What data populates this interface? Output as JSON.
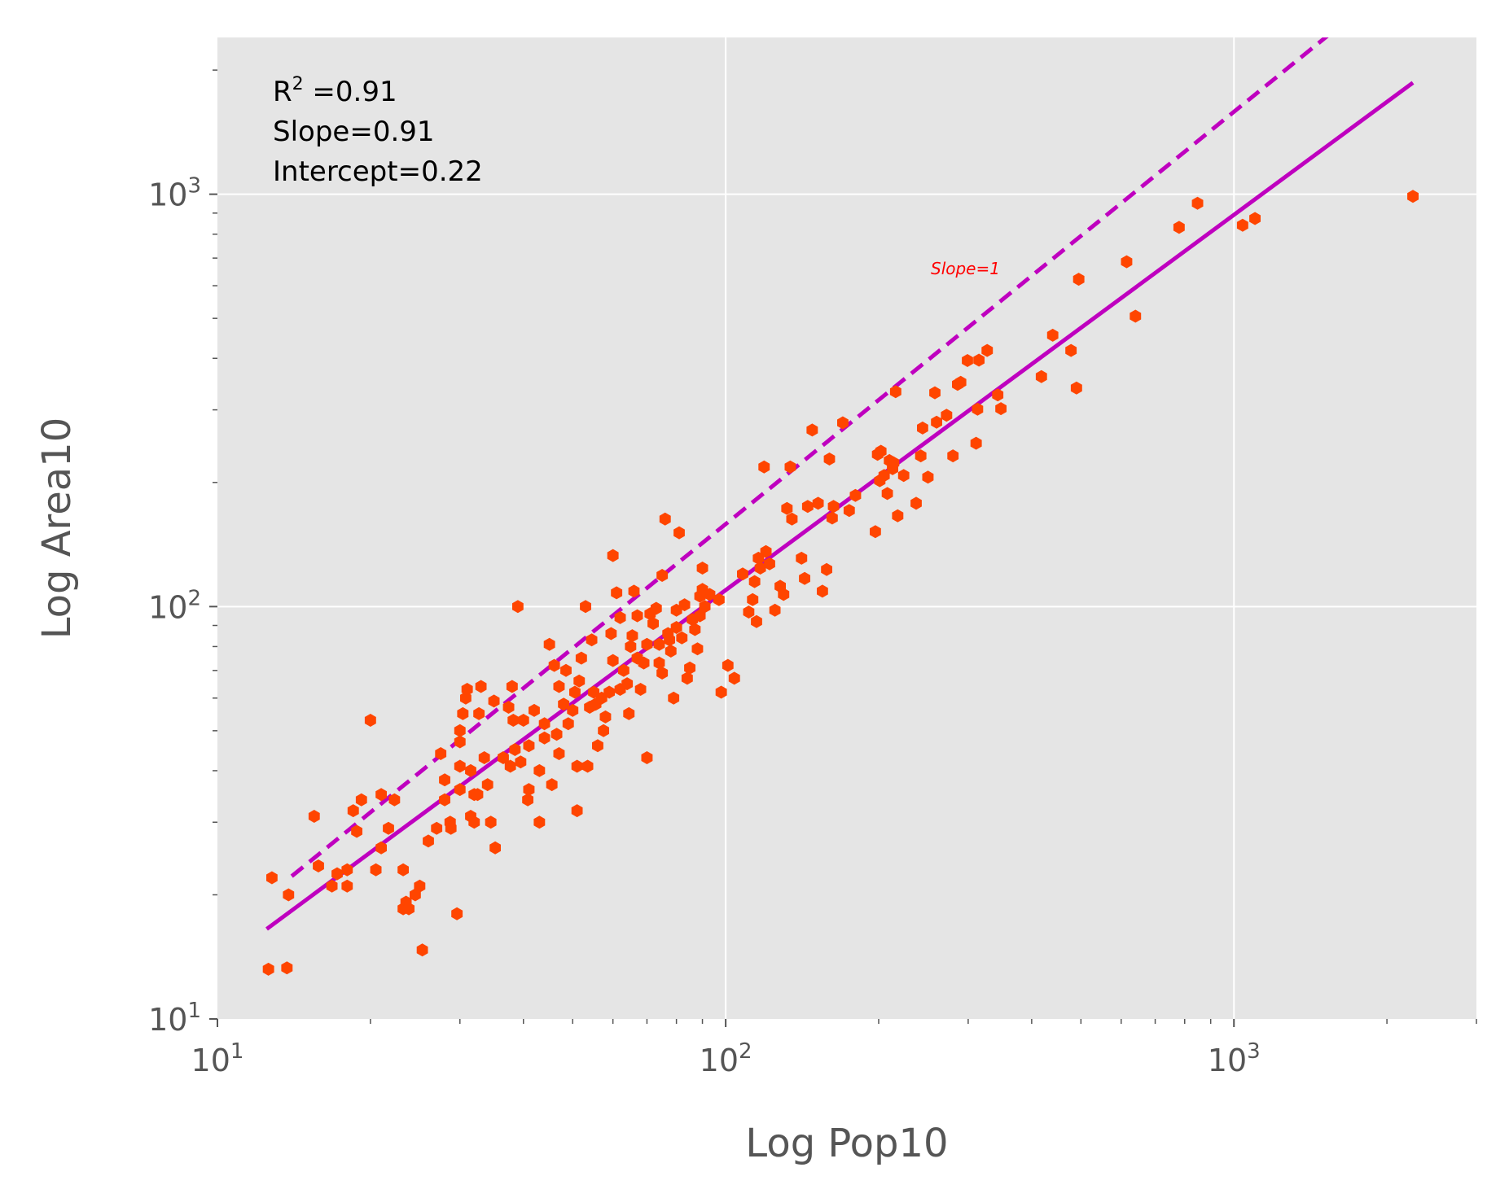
{
  "chart_data": {
    "type": "scatter",
    "title": "",
    "xlabel": "Log Pop10",
    "ylabel": "Log Area10",
    "xscale": "log",
    "yscale": "log",
    "xlim": [
      10,
      3000
    ],
    "ylim": [
      10,
      2400
    ],
    "grid": true,
    "legend": "none",
    "x_ticks": [
      {
        "value": 10,
        "base": "10",
        "exp": "1"
      },
      {
        "value": 100,
        "base": "10",
        "exp": "2"
      },
      {
        "value": 1000,
        "base": "10",
        "exp": "3"
      }
    ],
    "y_ticks": [
      {
        "value": 10,
        "base": "10",
        "exp": "1"
      },
      {
        "value": 100,
        "base": "10",
        "exp": "2"
      },
      {
        "value": 1000,
        "base": "10",
        "exp": "3"
      }
    ],
    "annotation": {
      "r2_prefix": "R",
      "r2_sup": "2",
      "r2_suffix": " =0.91",
      "slope_text": "Slope=0.91",
      "intercept_text": "Intercept=0.22"
    },
    "fit_line": {
      "style": "solid",
      "slope": 0.91,
      "intercept": 0.22,
      "x_range": [
        12.5,
        2250
      ]
    },
    "reference_line": {
      "style": "dashed",
      "slope": 1,
      "intercept": 0.2,
      "x_range": [
        14,
        2300
      ],
      "label": "Slope=1"
    },
    "colors": {
      "points": "#ff4500",
      "lines": "#bf00bf",
      "slope_label": "#ff0000",
      "plot_background": "#e5e5e5",
      "grid": "#ffffff",
      "text": "#555555"
    },
    "points": [
      [
        12.6,
        13.2
      ],
      [
        13.7,
        13.3
      ],
      [
        12.8,
        22
      ],
      [
        13.8,
        20
      ],
      [
        15.5,
        31
      ],
      [
        15.8,
        23.5
      ],
      [
        16.8,
        21
      ],
      [
        17.2,
        22.5
      ],
      [
        18,
        21
      ],
      [
        18,
        23
      ],
      [
        18.5,
        32
      ],
      [
        18.8,
        28.5
      ],
      [
        19.2,
        34
      ],
      [
        20,
        53
      ],
      [
        20.5,
        23
      ],
      [
        21,
        26
      ],
      [
        21,
        35
      ],
      [
        21.7,
        29
      ],
      [
        22.3,
        34
      ],
      [
        23.2,
        23
      ],
      [
        23.2,
        18.5
      ],
      [
        23.5,
        19.2
      ],
      [
        23.8,
        18.5
      ],
      [
        24.5,
        20
      ],
      [
        25,
        21
      ],
      [
        25.3,
        14.7
      ],
      [
        26,
        27
      ],
      [
        27,
        29
      ],
      [
        27.5,
        44
      ],
      [
        28,
        38
      ],
      [
        28,
        34
      ],
      [
        28.7,
        30
      ],
      [
        28.8,
        29
      ],
      [
        29.6,
        18
      ],
      [
        30,
        36
      ],
      [
        30,
        41
      ],
      [
        30,
        47
      ],
      [
        30,
        50
      ],
      [
        30.4,
        55
      ],
      [
        30.8,
        60
      ],
      [
        31,
        63
      ],
      [
        31.5,
        40
      ],
      [
        31.5,
        31
      ],
      [
        32,
        35
      ],
      [
        32,
        30
      ],
      [
        32.5,
        35
      ],
      [
        32.7,
        55
      ],
      [
        33,
        64
      ],
      [
        33.5,
        43
      ],
      [
        34,
        37
      ],
      [
        34.5,
        30
      ],
      [
        35,
        59
      ],
      [
        35.2,
        26
      ],
      [
        36.5,
        43
      ],
      [
        37.4,
        57
      ],
      [
        37.7,
        41
      ],
      [
        38,
        64
      ],
      [
        38.2,
        53
      ],
      [
        38.5,
        45
      ],
      [
        39,
        100
      ],
      [
        39.5,
        42
      ],
      [
        40,
        53
      ],
      [
        40.8,
        34
      ],
      [
        41,
        36
      ],
      [
        41,
        46
      ],
      [
        42,
        56
      ],
      [
        43,
        40
      ],
      [
        43,
        30
      ],
      [
        44,
        48
      ],
      [
        44,
        52
      ],
      [
        45,
        81
      ],
      [
        45.5,
        37
      ],
      [
        46,
        72
      ],
      [
        46.5,
        49
      ],
      [
        47,
        64
      ],
      [
        47,
        44
      ],
      [
        48,
        58
      ],
      [
        48.5,
        70
      ],
      [
        49,
        52
      ],
      [
        50,
        56
      ],
      [
        50.5,
        62
      ],
      [
        51,
        41
      ],
      [
        51,
        32
      ],
      [
        51.5,
        66
      ],
      [
        52,
        75
      ],
      [
        53,
        100
      ],
      [
        53.5,
        41
      ],
      [
        54,
        57
      ],
      [
        54.5,
        83
      ],
      [
        55,
        62
      ],
      [
        55.5,
        58
      ],
      [
        56,
        46
      ],
      [
        57,
        60
      ],
      [
        57.5,
        50
      ],
      [
        58,
        54
      ],
      [
        59,
        62
      ],
      [
        59.5,
        86
      ],
      [
        60,
        74
      ],
      [
        60,
        133
      ],
      [
        61,
        108
      ],
      [
        62,
        94
      ],
      [
        62,
        63
      ],
      [
        63,
        70
      ],
      [
        64,
        65
      ],
      [
        64.5,
        55
      ],
      [
        65,
        80
      ],
      [
        65.5,
        85
      ],
      [
        66,
        109
      ],
      [
        67,
        95
      ],
      [
        67,
        75
      ],
      [
        68,
        63
      ],
      [
        69,
        73
      ],
      [
        70,
        81
      ],
      [
        70,
        43
      ],
      [
        71,
        96
      ],
      [
        72,
        91
      ],
      [
        73,
        99
      ],
      [
        74,
        81
      ],
      [
        74,
        73
      ],
      [
        75,
        119
      ],
      [
        75,
        69
      ],
      [
        76,
        163
      ],
      [
        77,
        86
      ],
      [
        77.5,
        83
      ],
      [
        78,
        78
      ],
      [
        79,
        60
      ],
      [
        80,
        89
      ],
      [
        80,
        98
      ],
      [
        81,
        151
      ],
      [
        82,
        84
      ],
      [
        83,
        101
      ],
      [
        84,
        67
      ],
      [
        85,
        71
      ],
      [
        86,
        93
      ],
      [
        87,
        88
      ],
      [
        88,
        79
      ],
      [
        89,
        95
      ],
      [
        89,
        106
      ],
      [
        90,
        124
      ],
      [
        90,
        110
      ],
      [
        91,
        100
      ],
      [
        93,
        107
      ],
      [
        97,
        104
      ],
      [
        98,
        62
      ],
      [
        101,
        72
      ],
      [
        104,
        67
      ],
      [
        108,
        120
      ],
      [
        111,
        97
      ],
      [
        113,
        104
      ],
      [
        114,
        115
      ],
      [
        115,
        92
      ],
      [
        116,
        131
      ],
      [
        117,
        124
      ],
      [
        119,
        218
      ],
      [
        120,
        136
      ],
      [
        122,
        127
      ],
      [
        125,
        98
      ],
      [
        128,
        112
      ],
      [
        130,
        107
      ],
      [
        132,
        173
      ],
      [
        134,
        218
      ],
      [
        135,
        163
      ],
      [
        141,
        131
      ],
      [
        143,
        117
      ],
      [
        145,
        175
      ],
      [
        148,
        268
      ],
      [
        152,
        178
      ],
      [
        155,
        109
      ],
      [
        158,
        123
      ],
      [
        160,
        228
      ],
      [
        162,
        164
      ],
      [
        163,
        175
      ],
      [
        170,
        279
      ],
      [
        175,
        171
      ],
      [
        180,
        186
      ],
      [
        197,
        152
      ],
      [
        199,
        234
      ],
      [
        201,
        202
      ],
      [
        202,
        238
      ],
      [
        205,
        208
      ],
      [
        208,
        188
      ],
      [
        210,
        226
      ],
      [
        213,
        216
      ],
      [
        214,
        223
      ],
      [
        216,
        332
      ],
      [
        218,
        166
      ],
      [
        224,
        208
      ],
      [
        237,
        178
      ],
      [
        242,
        232
      ],
      [
        244,
        271
      ],
      [
        250,
        206
      ],
      [
        258,
        330
      ],
      [
        260,
        280
      ],
      [
        272,
        291
      ],
      [
        280,
        232
      ],
      [
        286,
        346
      ],
      [
        290,
        350
      ],
      [
        299,
        395
      ],
      [
        311,
        249
      ],
      [
        313,
        301
      ],
      [
        315,
        396
      ],
      [
        327,
        418
      ],
      [
        343,
        326
      ],
      [
        348,
        302
      ],
      [
        418,
        361
      ],
      [
        440,
        455
      ],
      [
        478,
        418
      ],
      [
        490,
        339
      ],
      [
        495,
        622
      ],
      [
        615,
        686
      ],
      [
        640,
        506
      ],
      [
        780,
        831
      ],
      [
        848,
        951
      ],
      [
        1040,
        841
      ],
      [
        1100,
        873
      ],
      [
        2250,
        988
      ]
    ]
  }
}
